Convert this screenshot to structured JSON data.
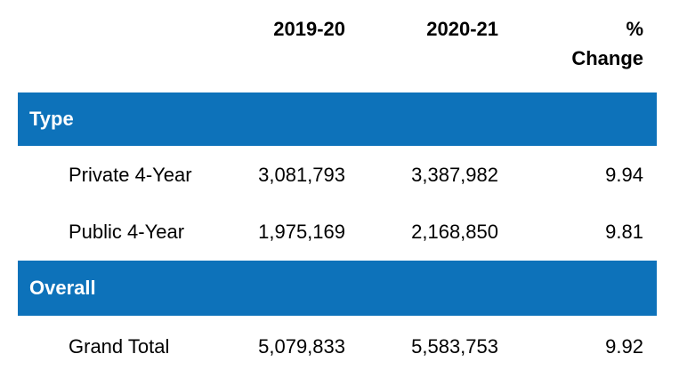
{
  "chart_data": {
    "type": "table",
    "columns": {
      "col1": "",
      "col2": "2019-20",
      "col3": "2020-21",
      "col4_line1": "%",
      "col4_line2": "Change"
    },
    "sections": [
      {
        "title": "Type",
        "rows": [
          {
            "label": "Private 4-Year",
            "v2019_20": "3,081,793",
            "v2020_21": "3,387,982",
            "pct_change": "9.94"
          },
          {
            "label": "Public 4-Year",
            "v2019_20": "1,975,169",
            "v2020_21": "2,168,850",
            "pct_change": "9.81"
          }
        ]
      },
      {
        "title": "Overall",
        "rows": [
          {
            "label": "Grand Total",
            "v2019_20": "5,079,833",
            "v2020_21": "5,583,753",
            "pct_change": "9.92"
          }
        ]
      }
    ],
    "colors": {
      "section_header_bg": "#0d72ba",
      "section_header_text": "#ffffff",
      "body_text": "#000000",
      "header_text": "#000000"
    },
    "layout_hints": {
      "numeric_columns_alignment": "right",
      "label_column_alignment": "left",
      "gridlines": "none"
    }
  }
}
